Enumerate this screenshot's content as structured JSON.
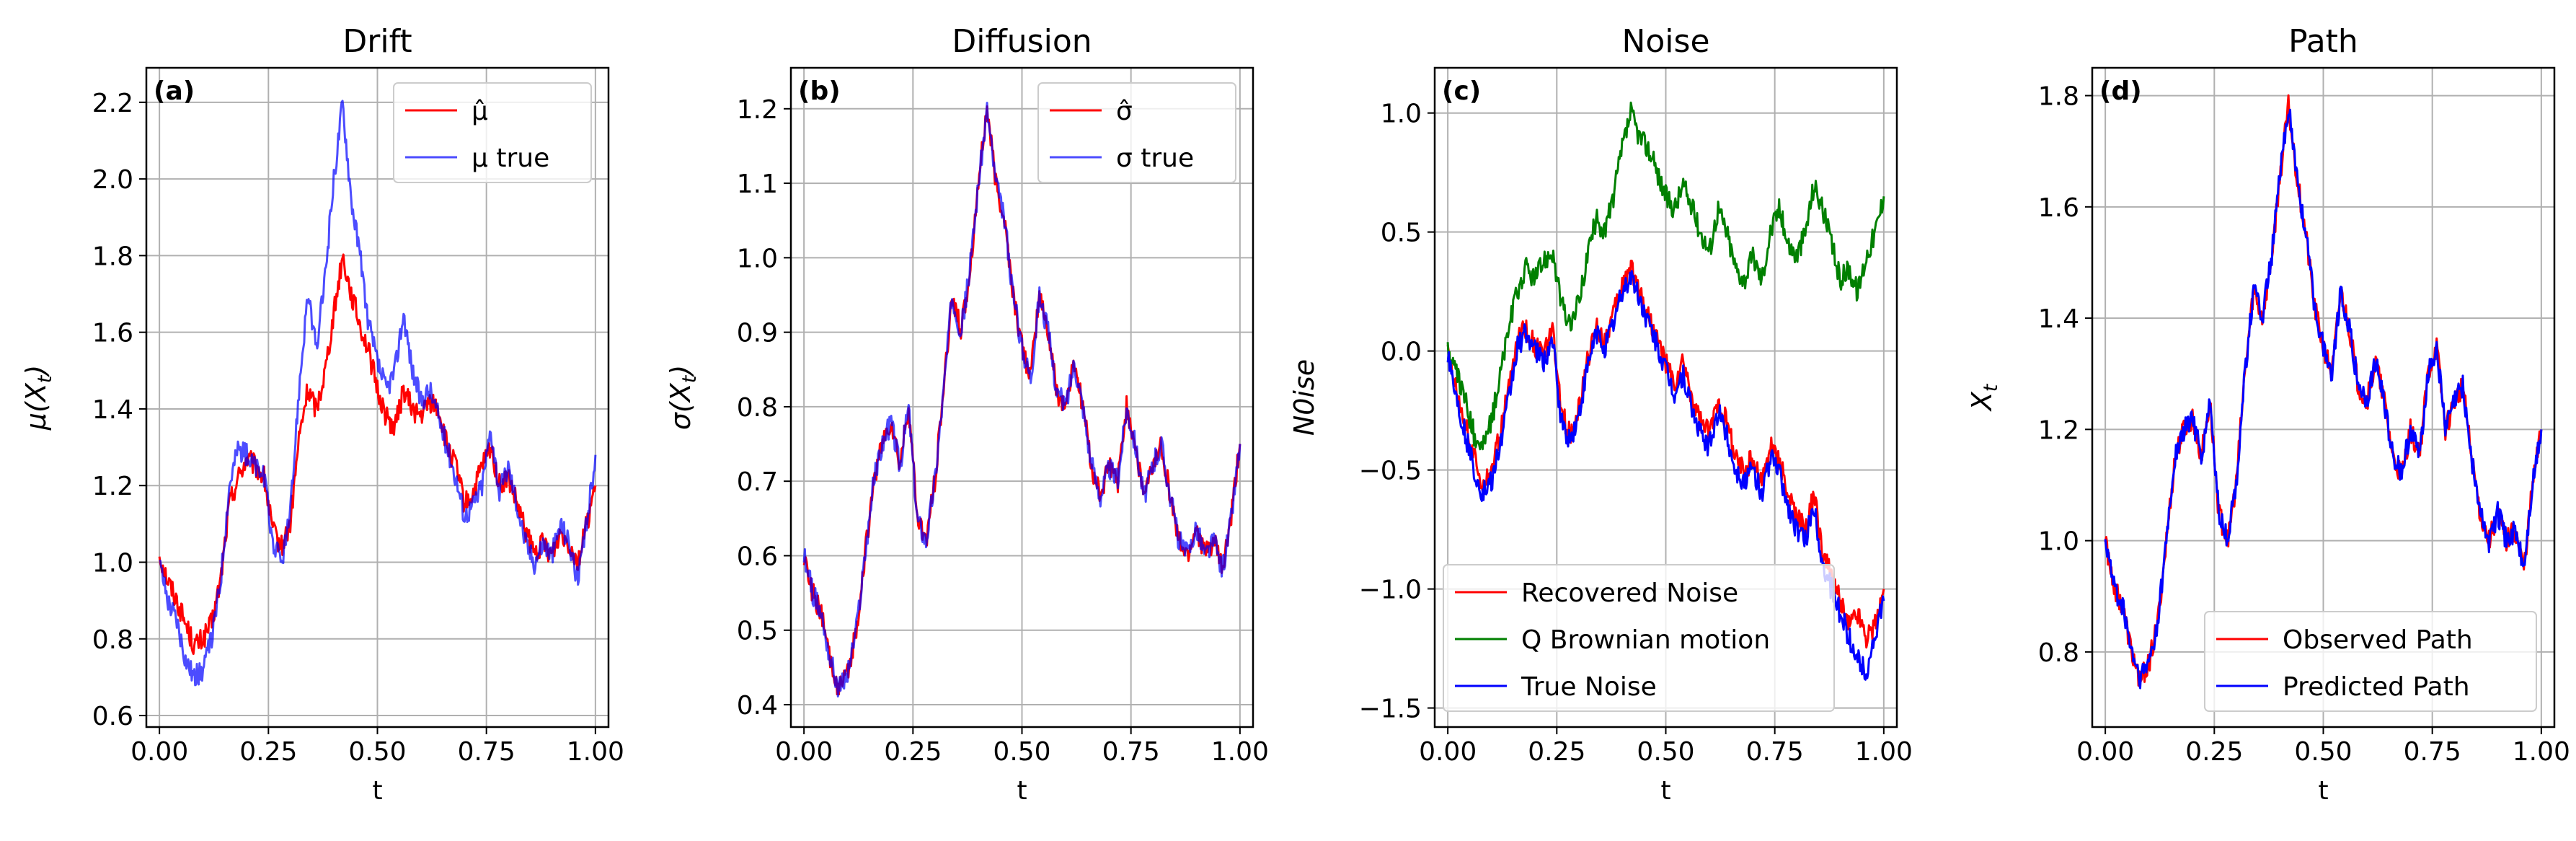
{
  "chart_data": [
    {
      "type": "line",
      "panel": "(a)",
      "title": "Drift",
      "xlabel": "t",
      "ylabel": "μ(X_t)",
      "xlim": [
        -0.03,
        1.03
      ],
      "ylim": [
        0.57,
        2.29
      ],
      "xticks": [
        0.0,
        0.25,
        0.5,
        0.75,
        1.0
      ],
      "xtick_labels": [
        "0.00",
        "0.25",
        "0.50",
        "0.75",
        "1.00"
      ],
      "yticks": [
        0.6,
        0.8,
        1.0,
        1.2,
        1.4,
        1.6,
        1.8,
        2.0,
        2.2
      ],
      "ytick_labels": [
        "0.6",
        "0.8",
        "1.0",
        "1.2",
        "1.4",
        "1.6",
        "1.8",
        "2.0",
        "2.2"
      ],
      "grid": true,
      "legend_position": "top-right",
      "x": [
        0.0,
        0.02,
        0.04,
        0.06,
        0.08,
        0.1,
        0.12,
        0.14,
        0.16,
        0.18,
        0.2,
        0.22,
        0.24,
        0.26,
        0.28,
        0.3,
        0.32,
        0.34,
        0.36,
        0.38,
        0.4,
        0.42,
        0.44,
        0.46,
        0.48,
        0.5,
        0.52,
        0.54,
        0.56,
        0.58,
        0.6,
        0.62,
        0.64,
        0.66,
        0.68,
        0.7,
        0.72,
        0.74,
        0.76,
        0.78,
        0.8,
        0.82,
        0.84,
        0.86,
        0.88,
        0.9,
        0.92,
        0.94,
        0.96,
        0.98,
        1.0
      ],
      "series": [
        {
          "name": "μ̂",
          "color": "#ff0000",
          "opacity": 1.0,
          "values": [
            1.02,
            0.95,
            0.9,
            0.84,
            0.78,
            0.8,
            0.84,
            0.95,
            1.15,
            1.22,
            1.27,
            1.25,
            1.22,
            1.08,
            1.04,
            1.1,
            1.32,
            1.45,
            1.4,
            1.5,
            1.65,
            1.8,
            1.7,
            1.62,
            1.55,
            1.45,
            1.38,
            1.35,
            1.45,
            1.4,
            1.38,
            1.42,
            1.4,
            1.3,
            1.25,
            1.15,
            1.18,
            1.25,
            1.3,
            1.2,
            1.22,
            1.15,
            1.08,
            1.02,
            1.05,
            1.02,
            1.08,
            1.05,
            1.0,
            1.1,
            1.2
          ]
        },
        {
          "name": "μ true",
          "color": "#0000ff",
          "opacity": 0.7,
          "values": [
            1.0,
            0.9,
            0.85,
            0.75,
            0.7,
            0.72,
            0.8,
            0.95,
            1.2,
            1.3,
            1.28,
            1.25,
            1.22,
            1.05,
            1.0,
            1.12,
            1.45,
            1.7,
            1.55,
            1.75,
            2.0,
            2.2,
            1.95,
            1.8,
            1.62,
            1.52,
            1.45,
            1.5,
            1.65,
            1.5,
            1.42,
            1.45,
            1.38,
            1.3,
            1.22,
            1.12,
            1.15,
            1.2,
            1.35,
            1.18,
            1.25,
            1.15,
            1.05,
            1.0,
            1.05,
            1.02,
            1.1,
            1.05,
            0.95,
            1.1,
            1.28
          ]
        }
      ]
    },
    {
      "type": "line",
      "panel": "(b)",
      "title": "Diffusion",
      "xlabel": "t",
      "ylabel": "σ(X_t)",
      "xlim": [
        -0.03,
        1.03
      ],
      "ylim": [
        0.37,
        1.255
      ],
      "xticks": [
        0.0,
        0.25,
        0.5,
        0.75,
        1.0
      ],
      "xtick_labels": [
        "0.00",
        "0.25",
        "0.50",
        "0.75",
        "1.00"
      ],
      "yticks": [
        0.4,
        0.5,
        0.6,
        0.7,
        0.8,
        0.9,
        1.0,
        1.1,
        1.2
      ],
      "ytick_labels": [
        "0.4",
        "0.5",
        "0.6",
        "0.7",
        "0.8",
        "0.9",
        "1.0",
        "1.1",
        "1.2"
      ],
      "grid": true,
      "legend_position": "top-right",
      "x": [
        0.0,
        0.02,
        0.04,
        0.06,
        0.08,
        0.1,
        0.12,
        0.14,
        0.16,
        0.18,
        0.2,
        0.22,
        0.24,
        0.26,
        0.28,
        0.3,
        0.32,
        0.34,
        0.36,
        0.38,
        0.4,
        0.42,
        0.44,
        0.46,
        0.48,
        0.5,
        0.52,
        0.54,
        0.56,
        0.58,
        0.6,
        0.62,
        0.64,
        0.66,
        0.68,
        0.7,
        0.72,
        0.74,
        0.76,
        0.78,
        0.8,
        0.82,
        0.84,
        0.86,
        0.88,
        0.9,
        0.92,
        0.94,
        0.96,
        0.98,
        1.0
      ],
      "series": [
        {
          "name": "σ̂",
          "color": "#ff0000",
          "opacity": 1.0,
          "values": [
            0.6,
            0.55,
            0.52,
            0.46,
            0.42,
            0.44,
            0.5,
            0.6,
            0.7,
            0.75,
            0.78,
            0.72,
            0.8,
            0.65,
            0.62,
            0.7,
            0.82,
            0.95,
            0.9,
            0.98,
            1.1,
            1.2,
            1.1,
            1.05,
            0.95,
            0.88,
            0.84,
            0.95,
            0.9,
            0.82,
            0.8,
            0.86,
            0.8,
            0.72,
            0.68,
            0.72,
            0.7,
            0.8,
            0.75,
            0.68,
            0.72,
            0.75,
            0.68,
            0.62,
            0.6,
            0.64,
            0.6,
            0.62,
            0.58,
            0.65,
            0.75
          ]
        },
        {
          "name": "σ true",
          "color": "#0000ff",
          "opacity": 0.7,
          "values": [
            0.6,
            0.55,
            0.52,
            0.46,
            0.42,
            0.44,
            0.5,
            0.6,
            0.7,
            0.75,
            0.78,
            0.72,
            0.8,
            0.65,
            0.62,
            0.7,
            0.82,
            0.95,
            0.9,
            0.98,
            1.1,
            1.2,
            1.1,
            1.05,
            0.95,
            0.88,
            0.84,
            0.95,
            0.9,
            0.82,
            0.8,
            0.86,
            0.8,
            0.72,
            0.68,
            0.72,
            0.7,
            0.8,
            0.75,
            0.68,
            0.72,
            0.75,
            0.68,
            0.62,
            0.6,
            0.64,
            0.6,
            0.62,
            0.58,
            0.65,
            0.75
          ]
        }
      ]
    },
    {
      "type": "line",
      "panel": "(c)",
      "title": "Noise",
      "xlabel": "t",
      "ylabel": "N0ise",
      "xlim": [
        -0.03,
        1.03
      ],
      "ylim": [
        -1.58,
        1.19
      ],
      "xticks": [
        0.0,
        0.25,
        0.5,
        0.75,
        1.0
      ],
      "xtick_labels": [
        "0.00",
        "0.25",
        "0.50",
        "0.75",
        "1.00"
      ],
      "yticks": [
        -1.5,
        -1.0,
        -0.5,
        0.0,
        0.5,
        1.0
      ],
      "ytick_labels": [
        "−1.5",
        "−1.0",
        "−0.5",
        "0.0",
        "0.5",
        "1.0"
      ],
      "grid": true,
      "legend_position": "bottom-left",
      "x": [
        0.0,
        0.02,
        0.04,
        0.06,
        0.08,
        0.1,
        0.12,
        0.14,
        0.16,
        0.18,
        0.2,
        0.22,
        0.24,
        0.26,
        0.28,
        0.3,
        0.32,
        0.34,
        0.36,
        0.38,
        0.4,
        0.42,
        0.44,
        0.46,
        0.48,
        0.5,
        0.52,
        0.54,
        0.56,
        0.58,
        0.6,
        0.62,
        0.64,
        0.66,
        0.68,
        0.7,
        0.72,
        0.74,
        0.76,
        0.78,
        0.8,
        0.82,
        0.84,
        0.86,
        0.88,
        0.9,
        0.92,
        0.94,
        0.96,
        0.98,
        1.0
      ],
      "series": [
        {
          "name": "Recovered Noise",
          "color": "#ff0000",
          "opacity": 1.0,
          "values": [
            0.0,
            -0.15,
            -0.3,
            -0.45,
            -0.55,
            -0.5,
            -0.35,
            -0.15,
            0.05,
            0.1,
            0.02,
            -0.02,
            0.08,
            -0.25,
            -0.35,
            -0.25,
            -0.05,
            0.1,
            0.05,
            0.15,
            0.28,
            0.35,
            0.25,
            0.15,
            0.05,
            -0.05,
            -0.15,
            -0.05,
            -0.2,
            -0.3,
            -0.35,
            -0.2,
            -0.3,
            -0.45,
            -0.5,
            -0.45,
            -0.55,
            -0.4,
            -0.45,
            -0.6,
            -0.7,
            -0.75,
            -0.6,
            -0.85,
            -0.95,
            -1.05,
            -1.15,
            -1.1,
            -1.2,
            -1.15,
            -1.0
          ]
        },
        {
          "name": "Q Brownian motion",
          "color": "#008000",
          "opacity": 1.0,
          "values": [
            0.0,
            -0.1,
            -0.2,
            -0.35,
            -0.4,
            -0.3,
            -0.1,
            0.1,
            0.25,
            0.35,
            0.3,
            0.38,
            0.42,
            0.2,
            0.1,
            0.2,
            0.4,
            0.55,
            0.5,
            0.65,
            0.85,
            1.0,
            0.9,
            0.85,
            0.75,
            0.65,
            0.6,
            0.7,
            0.6,
            0.5,
            0.42,
            0.6,
            0.5,
            0.35,
            0.3,
            0.4,
            0.3,
            0.5,
            0.6,
            0.45,
            0.4,
            0.5,
            0.7,
            0.6,
            0.45,
            0.3,
            0.35,
            0.25,
            0.4,
            0.5,
            0.65
          ]
        },
        {
          "name": "True Noise",
          "color": "#0000ff",
          "opacity": 1.0,
          "values": [
            0.0,
            -0.2,
            -0.35,
            -0.5,
            -0.6,
            -0.55,
            -0.4,
            -0.2,
            0.02,
            0.08,
            0.0,
            -0.05,
            0.05,
            -0.3,
            -0.38,
            -0.28,
            -0.08,
            0.08,
            0.02,
            0.12,
            0.25,
            0.32,
            0.22,
            0.12,
            0.02,
            -0.08,
            -0.18,
            -0.1,
            -0.25,
            -0.35,
            -0.4,
            -0.25,
            -0.35,
            -0.5,
            -0.55,
            -0.5,
            -0.6,
            -0.45,
            -0.5,
            -0.65,
            -0.75,
            -0.8,
            -0.65,
            -0.9,
            -1.0,
            -1.1,
            -1.2,
            -1.3,
            -1.35,
            -1.2,
            -1.05
          ]
        }
      ]
    },
    {
      "type": "line",
      "panel": "(d)",
      "title": "Path",
      "xlabel": "t",
      "ylabel": "X_t",
      "xlim": [
        -0.03,
        1.03
      ],
      "ylim": [
        0.665,
        1.85
      ],
      "xticks": [
        0.0,
        0.25,
        0.5,
        0.75,
        1.0
      ],
      "xtick_labels": [
        "0.00",
        "0.25",
        "0.50",
        "0.75",
        "1.00"
      ],
      "yticks": [
        0.8,
        1.0,
        1.2,
        1.4,
        1.6,
        1.8
      ],
      "ytick_labels": [
        "0.8",
        "1.0",
        "1.2",
        "1.4",
        "1.6",
        "1.8"
      ],
      "grid": true,
      "legend_position": "bottom-right",
      "x": [
        0.0,
        0.02,
        0.04,
        0.06,
        0.08,
        0.1,
        0.12,
        0.14,
        0.16,
        0.18,
        0.2,
        0.22,
        0.24,
        0.26,
        0.28,
        0.3,
        0.32,
        0.34,
        0.36,
        0.38,
        0.4,
        0.42,
        0.44,
        0.46,
        0.48,
        0.5,
        0.52,
        0.54,
        0.56,
        0.58,
        0.6,
        0.62,
        0.64,
        0.66,
        0.68,
        0.7,
        0.72,
        0.74,
        0.76,
        0.78,
        0.8,
        0.82,
        0.84,
        0.86,
        0.88,
        0.9,
        0.92,
        0.94,
        0.96,
        0.98,
        1.0
      ],
      "series": [
        {
          "name": "Observed Path",
          "color": "#ff0000",
          "opacity": 1.0,
          "values": [
            1.0,
            0.92,
            0.88,
            0.8,
            0.75,
            0.78,
            0.85,
            1.0,
            1.15,
            1.2,
            1.22,
            1.15,
            1.25,
            1.05,
            1.0,
            1.1,
            1.3,
            1.45,
            1.4,
            1.5,
            1.65,
            1.78,
            1.65,
            1.55,
            1.42,
            1.35,
            1.3,
            1.45,
            1.38,
            1.28,
            1.25,
            1.32,
            1.25,
            1.15,
            1.12,
            1.2,
            1.15,
            1.3,
            1.35,
            1.2,
            1.25,
            1.28,
            1.15,
            1.05,
            1.0,
            1.05,
            1.0,
            1.02,
            0.95,
            1.1,
            1.2
          ]
        },
        {
          "name": "Predicted Path",
          "color": "#0000ff",
          "opacity": 1.0,
          "values": [
            1.0,
            0.92,
            0.88,
            0.8,
            0.75,
            0.78,
            0.85,
            1.0,
            1.15,
            1.2,
            1.22,
            1.15,
            1.25,
            1.05,
            1.0,
            1.1,
            1.3,
            1.45,
            1.4,
            1.5,
            1.65,
            1.78,
            1.65,
            1.55,
            1.42,
            1.35,
            1.3,
            1.45,
            1.38,
            1.28,
            1.25,
            1.32,
            1.25,
            1.15,
            1.12,
            1.2,
            1.15,
            1.3,
            1.35,
            1.2,
            1.25,
            1.28,
            1.15,
            1.05,
            1.0,
            1.05,
            1.0,
            1.02,
            0.95,
            1.1,
            1.2
          ]
        }
      ]
    }
  ]
}
